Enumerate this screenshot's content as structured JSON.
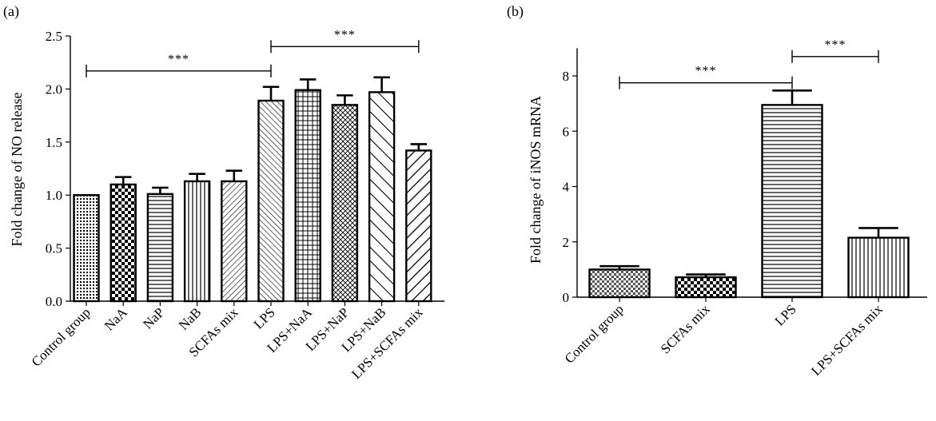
{
  "chart_data": [
    {
      "panel": "(a)",
      "type": "bar",
      "ylabel": "Fold change of NO release",
      "ylim": [
        0,
        2.5
      ],
      "yticks": [
        "0.0",
        "0.5",
        "1.0",
        "1.5",
        "2.0",
        "2.5"
      ],
      "categories": [
        "Control group",
        "NaA",
        "NaP",
        "NaB",
        "SCFAs mix",
        "LPS",
        "LPS+NaA",
        "LPS+NaP",
        "LPS+NaB",
        "LPS+SCFAs mix"
      ],
      "values": [
        1.0,
        1.1,
        1.01,
        1.13,
        1.13,
        1.89,
        1.99,
        1.85,
        1.97,
        1.42
      ],
      "errors": [
        0.0,
        0.07,
        0.06,
        0.07,
        0.1,
        0.13,
        0.1,
        0.09,
        0.14,
        0.06
      ],
      "patterns": [
        "dots",
        "checker",
        "hlines",
        "vlines",
        "diagonal-fine",
        "diagonal-back",
        "grid",
        "crosshatch",
        "diagonal-wide",
        "diagonal-bold"
      ],
      "significance": [
        {
          "from": 0,
          "to": 5,
          "label": "***",
          "y": 2.17
        },
        {
          "from": 5,
          "to": 9,
          "label": "***",
          "y": 2.4
        }
      ]
    },
    {
      "panel": "(b)",
      "type": "bar",
      "ylabel": "Fold change of iNOS mRNA",
      "ylim": [
        0,
        9
      ],
      "yticks": [
        "0",
        "2",
        "4",
        "6",
        "8"
      ],
      "categories": [
        "Control group",
        "SCFAs mix",
        "LPS",
        "LPS+SCFAs mix"
      ],
      "values": [
        1.0,
        0.72,
        6.95,
        2.15
      ],
      "errors": [
        0.12,
        0.1,
        0.52,
        0.35
      ],
      "patterns": [
        "checker-fine",
        "checker",
        "hlines",
        "vlines"
      ],
      "significance": [
        {
          "from": 0,
          "to": 2,
          "label": "***",
          "y": 7.75
        },
        {
          "from": 2,
          "to": 3,
          "label": "***",
          "y": 8.7
        }
      ]
    }
  ]
}
